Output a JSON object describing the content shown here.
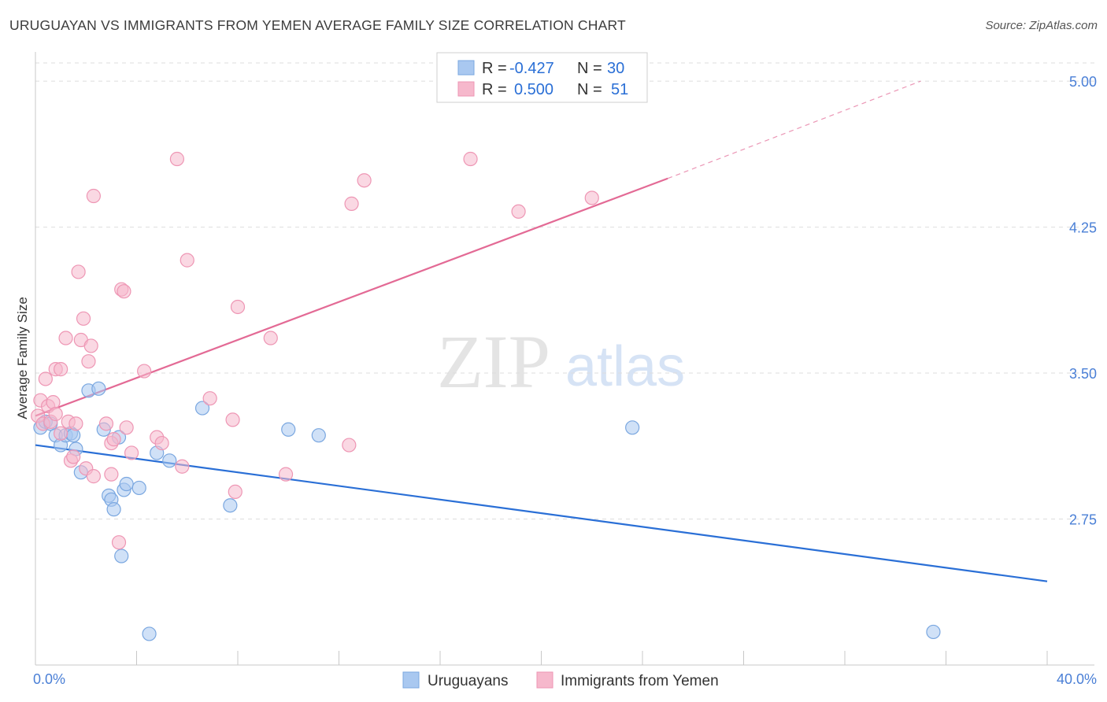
{
  "title": "URUGUAYAN VS IMMIGRANTS FROM YEMEN AVERAGE FAMILY SIZE CORRELATION CHART",
  "source": "Source: ZipAtlas.com",
  "watermark": {
    "zip": "ZIP",
    "atlas": "atlas"
  },
  "colors": {
    "blue_fill": "#a9c8f0",
    "blue_stroke": "#7aa7e0",
    "blue_line": "#2a6fd6",
    "pink_fill": "#f6b8cc",
    "pink_stroke": "#ee96b4",
    "pink_line": "#e36a95",
    "tick_text": "#4a7fd6",
    "grid": "#dddddd"
  },
  "legend": {
    "rows": [
      {
        "r_label": "R =",
        "r_value": "-0.427",
        "n_label": "N =",
        "n_value": "30",
        "color": "blue"
      },
      {
        "r_label": "R =",
        "r_value": "0.500",
        "n_label": "N =",
        "n_value": "51",
        "color": "pink"
      }
    ]
  },
  "chart_data": {
    "type": "scatter",
    "title": "URUGUAYAN VS IMMIGRANTS FROM YEMEN AVERAGE FAMILY SIZE CORRELATION CHART",
    "xlabel": "",
    "ylabel": "Average Family Size",
    "xlim": [
      0,
      40
    ],
    "ylim": [
      2.0,
      5.15
    ],
    "x_tick_labels": [
      "0.0%",
      "40.0%"
    ],
    "y_ticks": [
      2.75,
      3.5,
      4.25,
      5.0
    ],
    "y_tick_labels": [
      "2.75",
      "3.50",
      "4.25",
      "5.00"
    ],
    "grid": true,
    "legend_position": "top-center",
    "series": [
      {
        "name": "Uruguayans",
        "color": "blue",
        "points": [
          [
            0.2,
            3.22
          ],
          [
            0.4,
            3.25
          ],
          [
            0.6,
            3.24
          ],
          [
            0.8,
            3.18
          ],
          [
            1.0,
            3.13
          ],
          [
            1.2,
            3.18
          ],
          [
            1.4,
            3.19
          ],
          [
            1.5,
            3.18
          ],
          [
            1.6,
            3.11
          ],
          [
            1.8,
            2.99
          ],
          [
            2.1,
            3.41
          ],
          [
            2.5,
            3.42
          ],
          [
            2.7,
            3.21
          ],
          [
            2.9,
            2.87
          ],
          [
            3.0,
            2.85
          ],
          [
            3.1,
            2.8
          ],
          [
            3.3,
            3.17
          ],
          [
            3.4,
            2.56
          ],
          [
            3.5,
            2.9
          ],
          [
            3.6,
            2.93
          ],
          [
            4.1,
            2.91
          ],
          [
            4.5,
            2.16
          ],
          [
            4.8,
            3.09
          ],
          [
            5.3,
            3.05
          ],
          [
            6.6,
            3.32
          ],
          [
            7.7,
            2.82
          ],
          [
            10.0,
            3.21
          ],
          [
            11.2,
            3.18
          ],
          [
            23.6,
            3.22
          ],
          [
            35.5,
            2.17
          ]
        ],
        "trend": {
          "x": [
            0.0,
            40.0
          ],
          "y": [
            3.13,
            2.43
          ]
        }
      },
      {
        "name": "Immigrants from Yemen",
        "color": "pink",
        "points": [
          [
            0.1,
            3.28
          ],
          [
            0.2,
            3.36
          ],
          [
            0.3,
            3.24
          ],
          [
            0.4,
            3.47
          ],
          [
            0.5,
            3.33
          ],
          [
            0.6,
            3.25
          ],
          [
            0.7,
            3.35
          ],
          [
            0.8,
            3.29
          ],
          [
            0.8,
            3.52
          ],
          [
            1.0,
            3.19
          ],
          [
            1.0,
            3.52
          ],
          [
            1.2,
            3.68
          ],
          [
            1.3,
            3.25
          ],
          [
            1.4,
            3.05
          ],
          [
            1.5,
            3.07
          ],
          [
            1.6,
            3.24
          ],
          [
            1.7,
            4.02
          ],
          [
            1.8,
            3.67
          ],
          [
            1.9,
            3.78
          ],
          [
            2.0,
            3.01
          ],
          [
            2.1,
            3.56
          ],
          [
            2.2,
            3.64
          ],
          [
            2.3,
            2.97
          ],
          [
            2.3,
            4.41
          ],
          [
            2.8,
            3.24
          ],
          [
            3.0,
            2.98
          ],
          [
            3.0,
            3.14
          ],
          [
            3.1,
            3.16
          ],
          [
            3.3,
            2.63
          ],
          [
            3.4,
            3.93
          ],
          [
            3.5,
            3.92
          ],
          [
            3.6,
            3.22
          ],
          [
            3.8,
            3.09
          ],
          [
            4.3,
            3.51
          ],
          [
            4.8,
            3.17
          ],
          [
            5.0,
            3.14
          ],
          [
            5.6,
            4.6
          ],
          [
            5.8,
            3.02
          ],
          [
            6.0,
            4.08
          ],
          [
            6.9,
            3.37
          ],
          [
            7.8,
            3.26
          ],
          [
            7.9,
            2.89
          ],
          [
            8.0,
            3.84
          ],
          [
            9.3,
            3.68
          ],
          [
            9.9,
            2.98
          ],
          [
            12.4,
            3.13
          ],
          [
            12.5,
            4.37
          ],
          [
            13.0,
            4.49
          ],
          [
            17.2,
            4.6
          ],
          [
            19.1,
            4.33
          ],
          [
            22.0,
            4.4
          ]
        ],
        "trend": {
          "x": [
            0.0,
            25.0
          ],
          "y": [
            3.28,
            4.5
          ]
        },
        "trend_dashed_extension": {
          "x": [
            25.0,
            35.0
          ],
          "y": [
            4.5,
            5.0
          ]
        }
      }
    ]
  },
  "bottom_legend": {
    "items": [
      {
        "label": "Uruguayans",
        "color": "blue"
      },
      {
        "label": "Immigrants from Yemen",
        "color": "pink"
      }
    ]
  }
}
